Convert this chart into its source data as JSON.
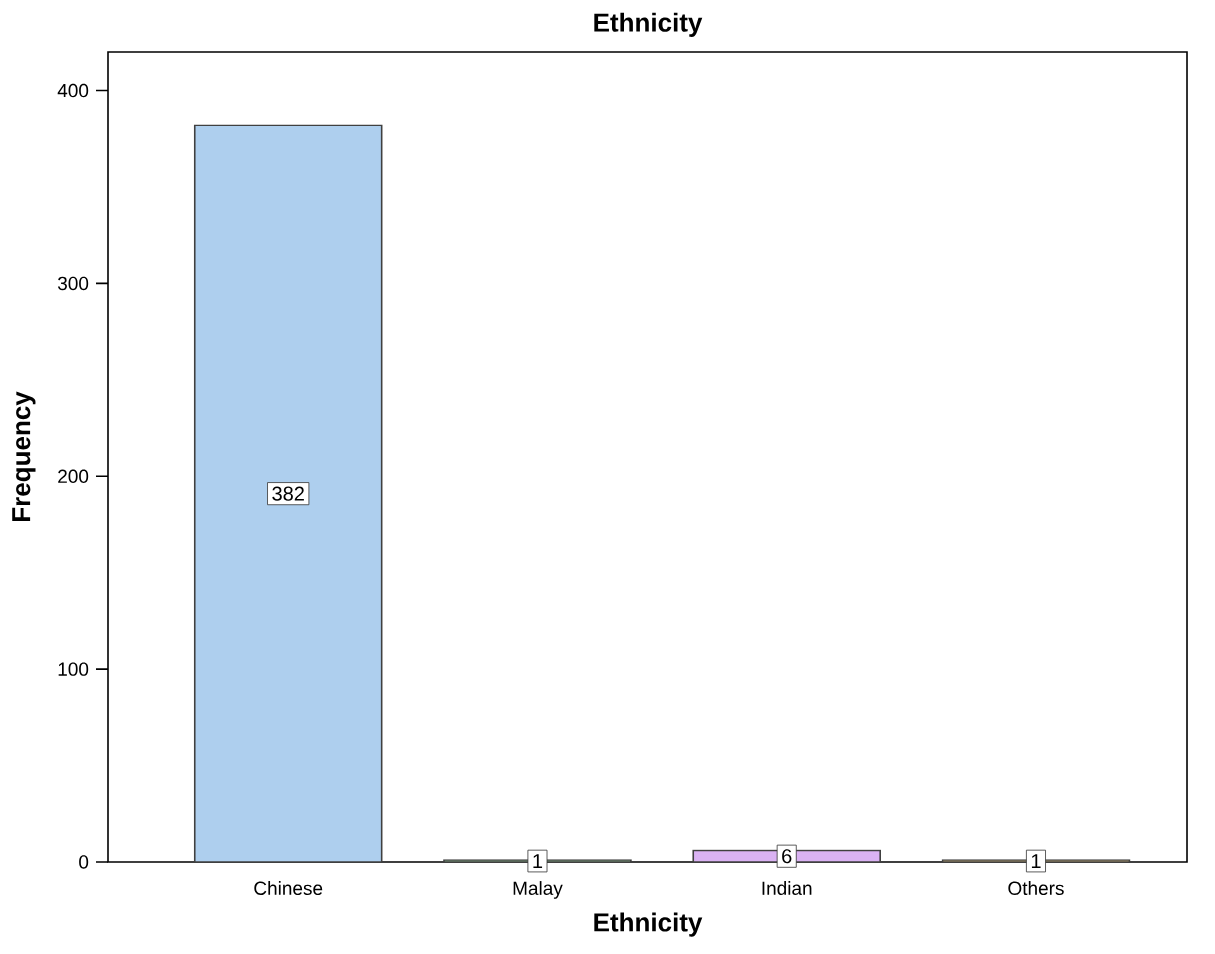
{
  "chart_data": {
    "type": "bar",
    "title": "Ethnicity",
    "xlabel": "Ethnicity",
    "ylabel": "Frequency",
    "categories": [
      "Chinese",
      "Malay",
      "Indian",
      "Others"
    ],
    "values": [
      382,
      1,
      6,
      1
    ],
    "colors": [
      "#aecfee",
      "#9fd6a0",
      "#dab2f3",
      "#f5d78e"
    ],
    "ylim": [
      0,
      420
    ],
    "yticks": [
      0,
      100,
      200,
      300,
      400
    ],
    "data_labels": true,
    "grid": false
  }
}
